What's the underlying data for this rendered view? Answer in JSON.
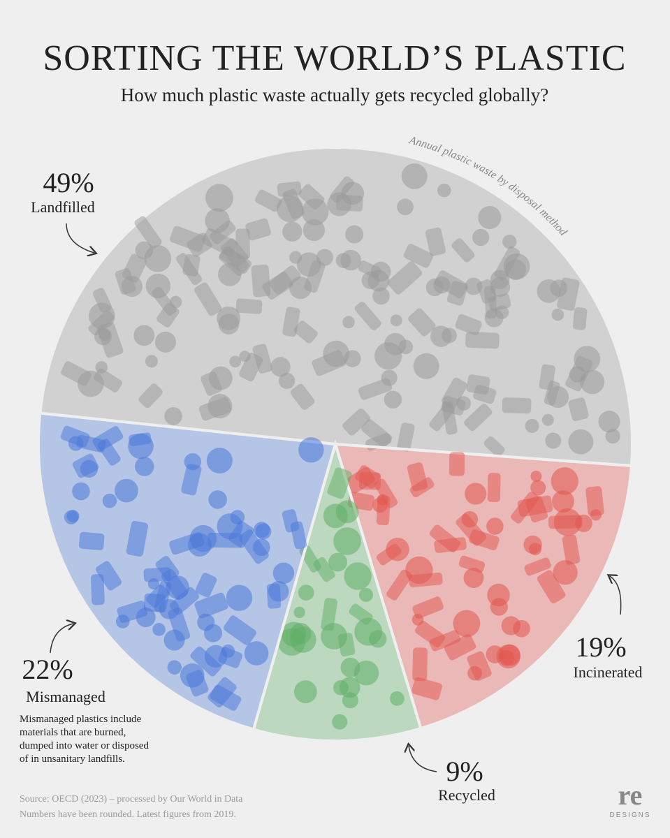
{
  "chart_data": {
    "type": "pie",
    "title": "SORTING THE WORLD’S PLASTIC",
    "subtitle": "How much plastic waste actually gets recycled globally?",
    "annotation": "Annual plastic waste by disposal method",
    "categories": [
      "Landfilled",
      "Incinerated",
      "Recycled",
      "Mismanaged"
    ],
    "values": [
      49,
      19,
      9,
      22
    ],
    "value_labels": [
      "49%",
      "19%",
      "9%",
      "22%"
    ],
    "colors": [
      "#9a9a9a",
      "#e2554f",
      "#5fae66",
      "#4a78d8"
    ],
    "note": [
      "Mismanaged plastics include",
      "materials that are burned,",
      "dumped into water or disposed",
      "of in unsanitary landfills."
    ],
    "source": [
      "Source: OECD (2023) – processed by Our World in Data",
      "Numbers have been rounded. Latest figures from 2019."
    ],
    "logo": [
      "re",
      "DESIGNS"
    ]
  }
}
